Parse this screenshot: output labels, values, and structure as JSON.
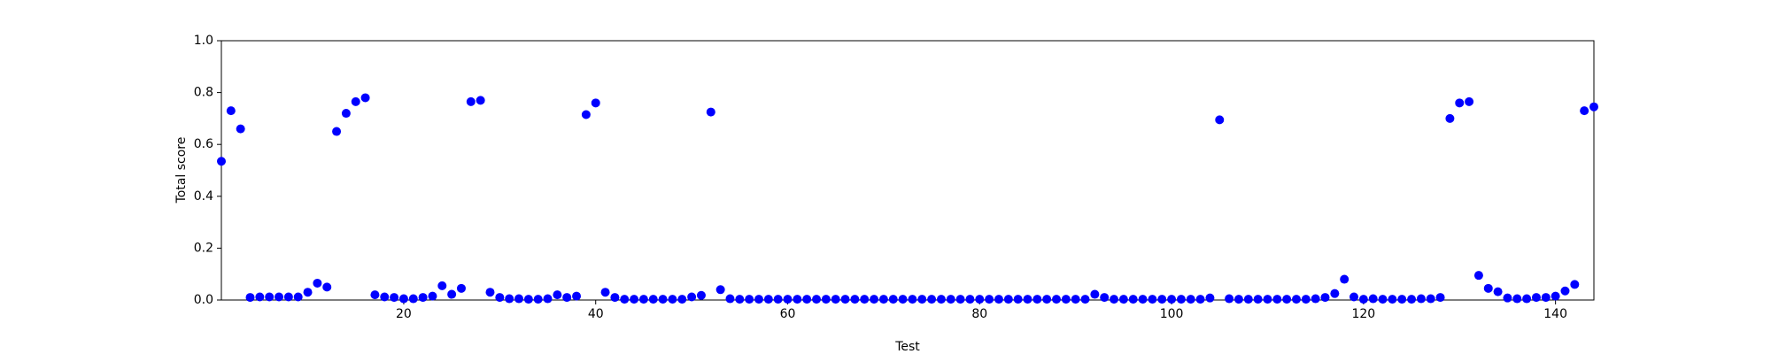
{
  "chart_data": {
    "type": "scatter",
    "xlabel": "Test",
    "ylabel": "Total score",
    "color": "#0000ff",
    "xlim": [
      1,
      144
    ],
    "ylim": [
      0,
      1
    ],
    "xticks": [
      20,
      40,
      60,
      80,
      100,
      120,
      140
    ],
    "yticks": [
      {
        "value": 0,
        "label": "0.0"
      },
      0.2,
      0.4,
      0.6,
      0.8,
      {
        "value": 1,
        "label": "1.0"
      }
    ],
    "x": [
      1,
      2,
      3,
      4,
      5,
      6,
      7,
      8,
      9,
      10,
      11,
      12,
      13,
      14,
      15,
      16,
      17,
      18,
      19,
      20,
      21,
      22,
      23,
      24,
      25,
      26,
      27,
      28,
      29,
      30,
      31,
      32,
      33,
      34,
      35,
      36,
      37,
      38,
      39,
      40,
      41,
      42,
      43,
      44,
      45,
      46,
      47,
      48,
      49,
      50,
      51,
      52,
      53,
      54,
      55,
      56,
      57,
      58,
      59,
      60,
      61,
      62,
      63,
      64,
      65,
      66,
      67,
      68,
      69,
      70,
      71,
      72,
      73,
      74,
      75,
      76,
      77,
      78,
      79,
      80,
      81,
      82,
      83,
      84,
      85,
      86,
      87,
      88,
      89,
      90,
      91,
      92,
      93,
      94,
      95,
      96,
      97,
      98,
      99,
      100,
      101,
      102,
      103,
      104,
      105,
      106,
      107,
      108,
      109,
      110,
      111,
      112,
      113,
      114,
      115,
      116,
      117,
      118,
      119,
      120,
      121,
      122,
      123,
      124,
      125,
      126,
      127,
      128,
      129,
      130,
      131,
      132,
      133,
      134,
      135,
      136,
      137,
      138,
      139,
      140,
      141,
      142,
      143,
      144
    ],
    "values": [
      0.535,
      0.73,
      0.66,
      0.01,
      0.012,
      0.012,
      0.012,
      0.012,
      0.012,
      0.03,
      0.065,
      0.05,
      0.65,
      0.72,
      0.765,
      0.78,
      0.02,
      0.012,
      0.01,
      0.005,
      0.005,
      0.01,
      0.015,
      0.055,
      0.022,
      0.045,
      0.765,
      0.77,
      0.03,
      0.01,
      0.005,
      0.005,
      0.003,
      0.003,
      0.005,
      0.02,
      0.01,
      0.015,
      0.715,
      0.76,
      0.03,
      0.01,
      0.003,
      0.003,
      0.003,
      0.003,
      0.003,
      0.003,
      0.003,
      0.012,
      0.018,
      0.725,
      0.04,
      0.005,
      0.003,
      0.003,
      0.003,
      0.003,
      0.003,
      0.003,
      0.003,
      0.003,
      0.003,
      0.003,
      0.003,
      0.003,
      0.003,
      0.003,
      0.003,
      0.003,
      0.003,
      0.003,
      0.003,
      0.003,
      0.003,
      0.003,
      0.003,
      0.003,
      0.003,
      0.003,
      0.003,
      0.003,
      0.003,
      0.003,
      0.003,
      0.003,
      0.003,
      0.003,
      0.003,
      0.003,
      0.003,
      0.022,
      0.01,
      0.003,
      0.003,
      0.003,
      0.003,
      0.003,
      0.003,
      0.003,
      0.003,
      0.003,
      0.003,
      0.008,
      0.695,
      0.005,
      0.003,
      0.003,
      0.003,
      0.003,
      0.003,
      0.003,
      0.003,
      0.003,
      0.005,
      0.01,
      0.025,
      0.08,
      0.012,
      0.003,
      0.005,
      0.003,
      0.003,
      0.003,
      0.003,
      0.005,
      0.005,
      0.01,
      0.7,
      0.76,
      0.765,
      0.095,
      0.045,
      0.032,
      0.008,
      0.005,
      0.005,
      0.01,
      0.01,
      0.015,
      0.035,
      0.06,
      0.73,
      0.745
    ]
  }
}
